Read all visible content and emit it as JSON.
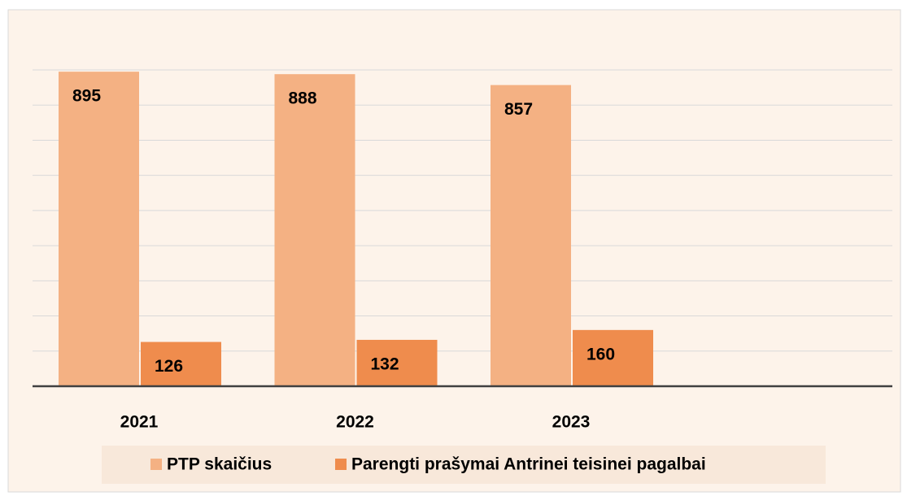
{
  "chart_data": {
    "type": "bar",
    "categories": [
      "2021",
      "2022",
      "2023"
    ],
    "series": [
      {
        "name": "PTP skaičius",
        "color": "#f4b183",
        "values": [
          895,
          888,
          857
        ]
      },
      {
        "name": "Parengti prašymai Antrinei teisinei pagalbai",
        "color": "#ef8c4d",
        "values": [
          126,
          132,
          160
        ]
      }
    ],
    "ylim": [
      0,
      900
    ],
    "yticks": [
      0,
      100,
      200,
      300,
      400,
      500,
      600,
      700,
      800,
      900
    ],
    "grid": true,
    "legend": "bottom"
  }
}
